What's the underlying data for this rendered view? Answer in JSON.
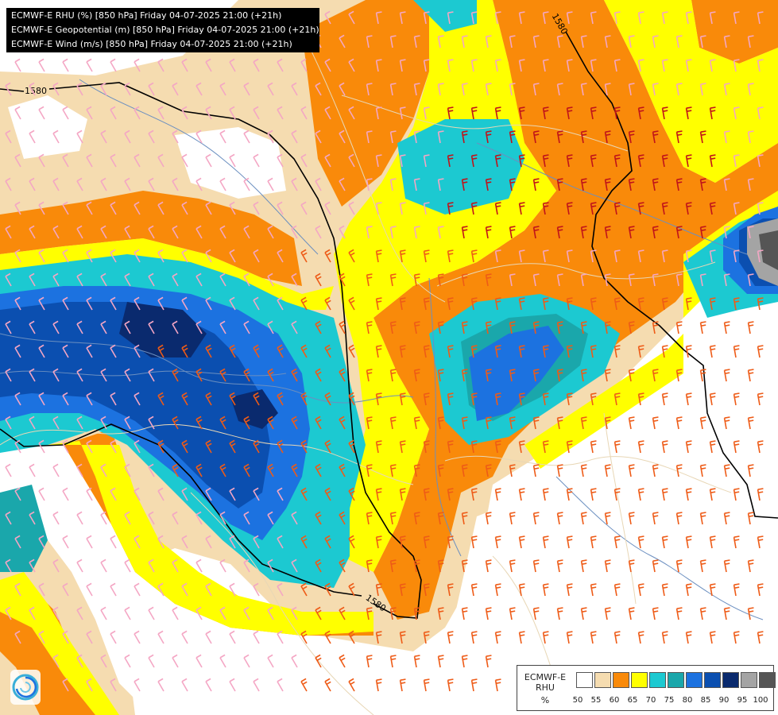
{
  "titles": [
    "ECMWF-E RHU (%) [850 hPa] Friday 04-07-2025 21:00 (+21h)",
    "ECMWF-E Geopotential (m) [850 hPa] Friday 04-07-2025 21:00 (+21h)",
    "ECMWF-E Wind (m/s) [850 hPa] Friday 04-07-2025 21:00 (+21h)"
  ],
  "legend": {
    "name_line1": "ECMWF-E",
    "name_line2": "RHU",
    "unit": "%",
    "colors": [
      "#ffffff",
      "#f5dcb0",
      "#f98a0a",
      "#ffff00",
      "#1cc9d1",
      "#1aa7ab",
      "#1c72e0",
      "#0b4fb0",
      "#0a2a6e",
      "#a4a4a4",
      "#555555"
    ],
    "ticks": [
      "50",
      "55",
      "60",
      "65",
      "70",
      "75",
      "80",
      "85",
      "90",
      "95",
      "100"
    ]
  },
  "contours": [
    {
      "label": "1580"
    },
    {
      "label": "1580"
    },
    {
      "label": "1580"
    }
  ],
  "colors": {
    "title_bg": "#000000",
    "title_text": "#ffffff",
    "geopotential_line": "#000000",
    "border_line": "#e8d7b6",
    "river_line": "#6b8fc0",
    "wind_barb_low": "#f4a6c4",
    "wind_barb_mid": "#ee5b17",
    "wind_barb_high": "#c0131a"
  },
  "icons": {
    "logo": "dhmz-swirl-logo",
    "wind": "wind-barb-icon"
  }
}
